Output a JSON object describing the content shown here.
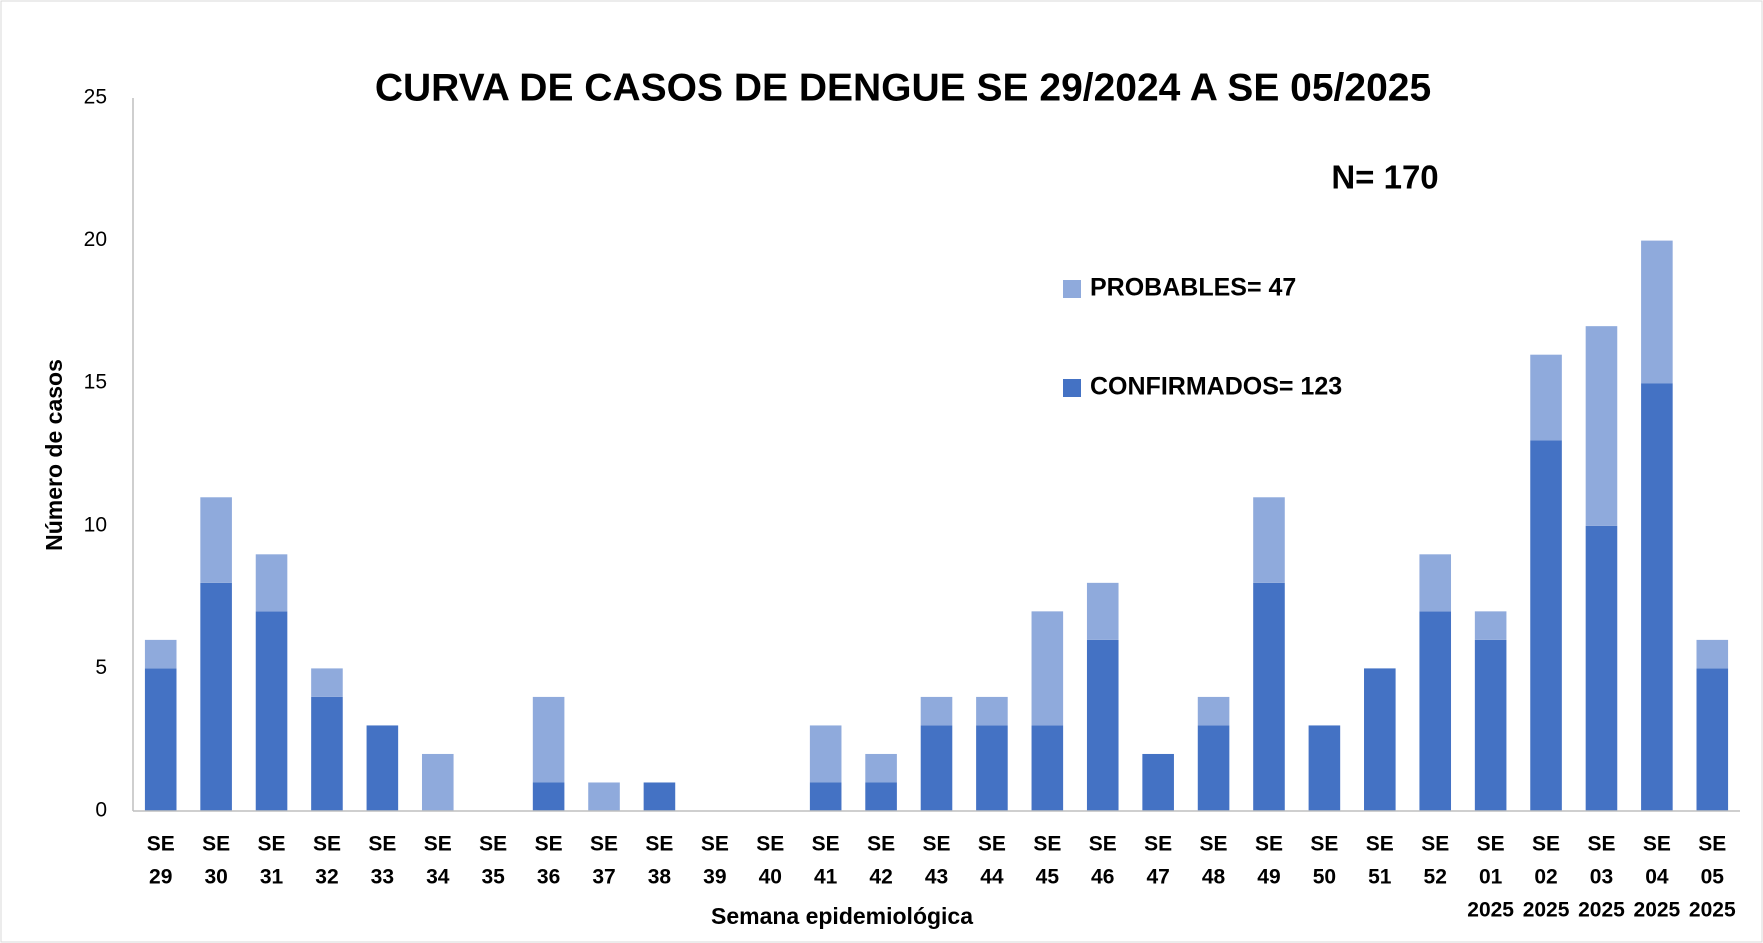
{
  "chart_data": {
    "type": "stacked_bar",
    "title": "CURVA DE CASOS DE DENGUE SE 29/2024 A SE 05/2025",
    "annotation": "N= 170",
    "x_label": "Semana epidemiológica",
    "y_label": "Número de casos",
    "categories": [
      [
        "SE",
        "29"
      ],
      [
        "SE",
        "30"
      ],
      [
        "SE",
        "31"
      ],
      [
        "SE",
        "32"
      ],
      [
        "SE",
        "33"
      ],
      [
        "SE",
        "34"
      ],
      [
        "SE",
        "35"
      ],
      [
        "SE",
        "36"
      ],
      [
        "SE",
        "37"
      ],
      [
        "SE",
        "38"
      ],
      [
        "SE",
        "39"
      ],
      [
        "SE",
        "40"
      ],
      [
        "SE",
        "41"
      ],
      [
        "SE",
        "42"
      ],
      [
        "SE",
        "43"
      ],
      [
        "SE",
        "44"
      ],
      [
        "SE",
        "45"
      ],
      [
        "SE",
        "46"
      ],
      [
        "SE",
        "47"
      ],
      [
        "SE",
        "48"
      ],
      [
        "SE",
        "49"
      ],
      [
        "SE",
        "50"
      ],
      [
        "SE",
        "51"
      ],
      [
        "SE",
        "52"
      ],
      [
        "SE",
        "01",
        "2025"
      ],
      [
        "SE",
        "02",
        "2025"
      ],
      [
        "SE",
        "03",
        "2025"
      ],
      [
        "SE",
        "04",
        "2025"
      ],
      [
        "SE",
        "05",
        "2025"
      ]
    ],
    "series": [
      {
        "name": "CONFIRMADOS= 123",
        "color": "#4472c4",
        "values": [
          5,
          8,
          7,
          4,
          3,
          0,
          0,
          1,
          0,
          1,
          0,
          0,
          1,
          1,
          3,
          3,
          3,
          6,
          2,
          3,
          8,
          3,
          5,
          7,
          6,
          13,
          10,
          15,
          5
        ]
      },
      {
        "name": "PROBABLES= 47",
        "color": "#8faadc",
        "values": [
          1,
          3,
          2,
          1,
          0,
          2,
          0,
          3,
          1,
          0,
          0,
          0,
          2,
          1,
          1,
          1,
          4,
          2,
          0,
          1,
          3,
          0,
          0,
          2,
          1,
          3,
          7,
          5,
          1
        ]
      }
    ],
    "ylim": [
      0,
      25
    ],
    "yticks": [
      0,
      5,
      10,
      15,
      20,
      25
    ],
    "grid": false
  }
}
